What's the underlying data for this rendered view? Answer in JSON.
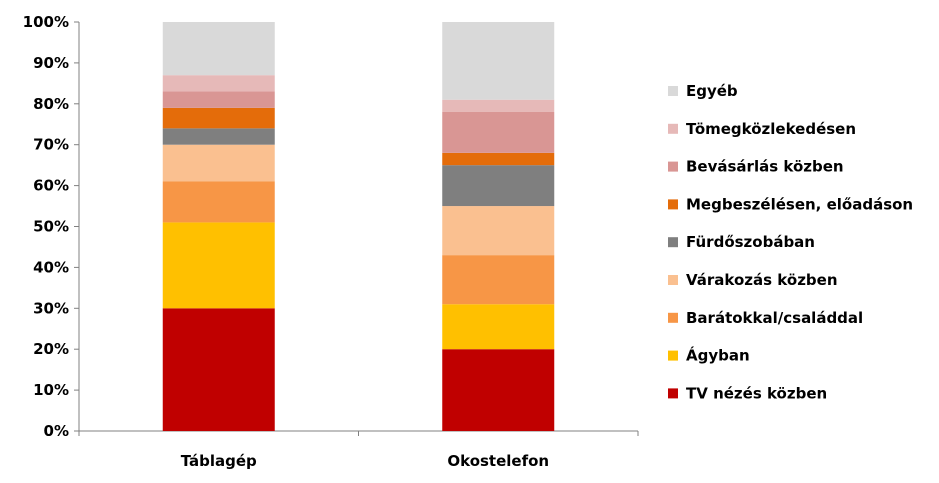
{
  "chart_data": {
    "type": "bar",
    "stacked": true,
    "percent": true,
    "categories": [
      "Táblagép",
      "Okostelefon"
    ],
    "series": [
      {
        "name": "TV nézés közben",
        "color": "#c00000",
        "values": [
          30,
          20
        ]
      },
      {
        "name": "Ágyban",
        "color": "#ffc000",
        "values": [
          21,
          11
        ]
      },
      {
        "name": "Barátokkal/családdal",
        "color": "#f79646",
        "values": [
          10,
          12
        ]
      },
      {
        "name": "Várakozás közben",
        "color": "#fac090",
        "values": [
          9,
          12
        ]
      },
      {
        "name": "Fürdőszobában",
        "color": "#7f7f7f",
        "values": [
          4,
          10
        ]
      },
      {
        "name": "Megbeszélésen, előadáson",
        "color": "#e46c0a",
        "values": [
          5,
          3
        ]
      },
      {
        "name": "Bevásárlás közben",
        "color": "#d99694",
        "values": [
          4,
          10
        ]
      },
      {
        "name": "Tömegközlekedésen",
        "color": "#e6b9b8",
        "values": [
          4,
          3
        ]
      },
      {
        "name": "Egyéb",
        "color": "#d9d9d9",
        "values": [
          13,
          19
        ]
      }
    ],
    "ylim": [
      0,
      100
    ],
    "yticks": [
      "0%",
      "10%",
      "20%",
      "30%",
      "40%",
      "50%",
      "60%",
      "70%",
      "80%",
      "90%",
      "100%"
    ],
    "legend_position": "right",
    "grid": false
  }
}
